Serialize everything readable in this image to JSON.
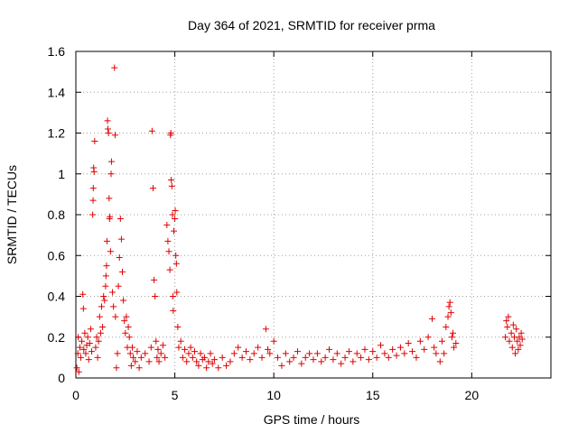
{
  "chart_data": {
    "type": "scatter",
    "title": "Day 364 of 2021, SRMTID for receiver prma",
    "xlabel": "GPS time / hours",
    "ylabel": "SRMTID / TECUs",
    "xlim": [
      0,
      24
    ],
    "ylim": [
      0,
      1.6
    ],
    "x_ticks": [
      0,
      5,
      10,
      15,
      20
    ],
    "x_tick_labels": [
      "0",
      "5",
      "10",
      "15",
      "20"
    ],
    "y_ticks": [
      0,
      0.2,
      0.4,
      0.6,
      0.8,
      1,
      1.2,
      1.4,
      1.6
    ],
    "y_tick_labels": [
      "0",
      "0.2",
      "0.4",
      "0.6",
      "0.8",
      "1",
      "1.2",
      "1.4",
      "1.6"
    ],
    "grid": true,
    "marker": "+",
    "color": "#e00000",
    "series": [
      {
        "name": "SRMTID",
        "points": [
          [
            0.05,
            0.05
          ],
          [
            0.1,
            0.12
          ],
          [
            0.12,
            0.2
          ],
          [
            0.15,
            0.03
          ],
          [
            0.2,
            0.15
          ],
          [
            0.25,
            0.1
          ],
          [
            0.3,
            0.18
          ],
          [
            0.35,
            0.41
          ],
          [
            0.38,
            0.34
          ],
          [
            0.4,
            0.14
          ],
          [
            0.45,
            0.22
          ],
          [
            0.5,
            0.12
          ],
          [
            0.55,
            0.16
          ],
          [
            0.6,
            0.2
          ],
          [
            0.65,
            0.09
          ],
          [
            0.7,
            0.17
          ],
          [
            0.75,
            0.24
          ],
          [
            0.8,
            0.13
          ],
          [
            0.85,
            0.8
          ],
          [
            0.87,
            0.87
          ],
          [
            0.88,
            0.93
          ],
          [
            0.9,
            1.03
          ],
          [
            0.92,
            1.01
          ],
          [
            0.95,
            1.16
          ],
          [
            1.0,
            0.15
          ],
          [
            1.05,
            0.2
          ],
          [
            1.1,
            0.1
          ],
          [
            1.15,
            0.18
          ],
          [
            1.2,
            0.3
          ],
          [
            1.25,
            0.22
          ],
          [
            1.3,
            0.35
          ],
          [
            1.35,
            0.25
          ],
          [
            1.4,
            0.4
          ],
          [
            1.45,
            0.38
          ],
          [
            1.5,
            0.45
          ],
          [
            1.52,
            0.5
          ],
          [
            1.55,
            0.55
          ],
          [
            1.57,
            0.67
          ],
          [
            1.6,
            1.26
          ],
          [
            1.62,
            1.22
          ],
          [
            1.65,
            1.2
          ],
          [
            1.68,
            0.88
          ],
          [
            1.7,
            0.78
          ],
          [
            1.72,
            0.79
          ],
          [
            1.75,
            0.62
          ],
          [
            1.78,
            1.0
          ],
          [
            1.8,
            1.06
          ],
          [
            1.85,
            0.42
          ],
          [
            1.9,
            0.35
          ],
          [
            1.95,
            1.52
          ],
          [
            1.98,
            1.19
          ],
          [
            2.0,
            0.3
          ],
          [
            2.05,
            0.05
          ],
          [
            2.1,
            0.12
          ],
          [
            2.15,
            0.45
          ],
          [
            2.2,
            0.59
          ],
          [
            2.25,
            0.78
          ],
          [
            2.3,
            0.68
          ],
          [
            2.35,
            0.52
          ],
          [
            2.4,
            0.38
          ],
          [
            2.45,
            0.28
          ],
          [
            2.5,
            0.22
          ],
          [
            2.55,
            0.3
          ],
          [
            2.6,
            0.15
          ],
          [
            2.65,
            0.25
          ],
          [
            2.7,
            0.2
          ],
          [
            2.75,
            0.12
          ],
          [
            2.8,
            0.06
          ],
          [
            2.85,
            0.15
          ],
          [
            2.9,
            0.1
          ],
          [
            3.0,
            0.08
          ],
          [
            3.1,
            0.13
          ],
          [
            3.2,
            0.05
          ],
          [
            3.3,
            0.1
          ],
          [
            3.5,
            0.12
          ],
          [
            3.7,
            0.08
          ],
          [
            3.8,
            0.15
          ],
          [
            3.85,
            1.21
          ],
          [
            3.9,
            0.93
          ],
          [
            3.95,
            0.48
          ],
          [
            4.0,
            0.4
          ],
          [
            4.05,
            0.18
          ],
          [
            4.1,
            0.1
          ],
          [
            4.15,
            0.14
          ],
          [
            4.2,
            0.08
          ],
          [
            4.3,
            0.12
          ],
          [
            4.4,
            0.16
          ],
          [
            4.5,
            0.1
          ],
          [
            4.6,
            0.75
          ],
          [
            4.65,
            0.67
          ],
          [
            4.7,
            0.62
          ],
          [
            4.75,
            0.53
          ],
          [
            4.78,
            1.19
          ],
          [
            4.8,
            1.2
          ],
          [
            4.82,
            0.97
          ],
          [
            4.85,
            0.94
          ],
          [
            4.88,
            0.8
          ],
          [
            4.9,
            0.4
          ],
          [
            4.92,
            0.33
          ],
          [
            4.95,
            0.72
          ],
          [
            5.0,
            0.78
          ],
          [
            5.02,
            0.82
          ],
          [
            5.05,
            0.6
          ],
          [
            5.08,
            0.56
          ],
          [
            5.1,
            0.42
          ],
          [
            5.15,
            0.25
          ],
          [
            5.2,
            0.15
          ],
          [
            5.3,
            0.18
          ],
          [
            5.4,
            0.1
          ],
          [
            5.5,
            0.14
          ],
          [
            5.6,
            0.08
          ],
          [
            5.7,
            0.12
          ],
          [
            5.8,
            0.15
          ],
          [
            5.9,
            0.1
          ],
          [
            6.0,
            0.13
          ],
          [
            6.1,
            0.08
          ],
          [
            6.2,
            0.06
          ],
          [
            6.3,
            0.12
          ],
          [
            6.4,
            0.09
          ],
          [
            6.5,
            0.1
          ],
          [
            6.6,
            0.05
          ],
          [
            6.7,
            0.08
          ],
          [
            6.8,
            0.12
          ],
          [
            6.9,
            0.07
          ],
          [
            7.0,
            0.09
          ],
          [
            7.2,
            0.05
          ],
          [
            7.4,
            0.1
          ],
          [
            7.6,
            0.06
          ],
          [
            7.8,
            0.08
          ],
          [
            8.0,
            0.12
          ],
          [
            8.2,
            0.15
          ],
          [
            8.4,
            0.1
          ],
          [
            8.6,
            0.13
          ],
          [
            8.8,
            0.09
          ],
          [
            9.0,
            0.12
          ],
          [
            9.2,
            0.15
          ],
          [
            9.4,
            0.1
          ],
          [
            9.6,
            0.24
          ],
          [
            9.7,
            0.14
          ],
          [
            9.8,
            0.12
          ],
          [
            10.0,
            0.18
          ],
          [
            10.2,
            0.1
          ],
          [
            10.4,
            0.06
          ],
          [
            10.6,
            0.12
          ],
          [
            10.8,
            0.08
          ],
          [
            11.0,
            0.1
          ],
          [
            11.2,
            0.13
          ],
          [
            11.4,
            0.07
          ],
          [
            11.6,
            0.1
          ],
          [
            11.8,
            0.12
          ],
          [
            12.0,
            0.09
          ],
          [
            12.2,
            0.12
          ],
          [
            12.4,
            0.08
          ],
          [
            12.6,
            0.1
          ],
          [
            12.8,
            0.14
          ],
          [
            13.0,
            0.09
          ],
          [
            13.2,
            0.12
          ],
          [
            13.4,
            0.07
          ],
          [
            13.6,
            0.1
          ],
          [
            13.8,
            0.13
          ],
          [
            14.0,
            0.08
          ],
          [
            14.2,
            0.12
          ],
          [
            14.4,
            0.1
          ],
          [
            14.6,
            0.14
          ],
          [
            14.8,
            0.09
          ],
          [
            15.0,
            0.13
          ],
          [
            15.2,
            0.1
          ],
          [
            15.4,
            0.16
          ],
          [
            15.6,
            0.12
          ],
          [
            15.8,
            0.1
          ],
          [
            16.0,
            0.14
          ],
          [
            16.2,
            0.11
          ],
          [
            16.4,
            0.15
          ],
          [
            16.6,
            0.12
          ],
          [
            16.8,
            0.17
          ],
          [
            17.0,
            0.13
          ],
          [
            17.2,
            0.1
          ],
          [
            17.4,
            0.18
          ],
          [
            17.6,
            0.14
          ],
          [
            17.8,
            0.2
          ],
          [
            18.0,
            0.29
          ],
          [
            18.1,
            0.15
          ],
          [
            18.2,
            0.12
          ],
          [
            18.4,
            0.08
          ],
          [
            18.5,
            0.18
          ],
          [
            18.6,
            0.12
          ],
          [
            18.7,
            0.25
          ],
          [
            18.8,
            0.3
          ],
          [
            18.85,
            0.35
          ],
          [
            18.9,
            0.37
          ],
          [
            18.95,
            0.32
          ],
          [
            19.0,
            0.2
          ],
          [
            19.05,
            0.22
          ],
          [
            19.1,
            0.15
          ],
          [
            19.2,
            0.17
          ],
          [
            21.7,
            0.2
          ],
          [
            21.75,
            0.28
          ],
          [
            21.8,
            0.25
          ],
          [
            21.85,
            0.3
          ],
          [
            21.9,
            0.18
          ],
          [
            22.0,
            0.22
          ],
          [
            22.05,
            0.15
          ],
          [
            22.1,
            0.26
          ],
          [
            22.15,
            0.2
          ],
          [
            22.2,
            0.12
          ],
          [
            22.25,
            0.24
          ],
          [
            22.3,
            0.18
          ],
          [
            22.35,
            0.14
          ],
          [
            22.4,
            0.2
          ],
          [
            22.45,
            0.16
          ],
          [
            22.5,
            0.22
          ],
          [
            22.55,
            0.19
          ]
        ]
      }
    ]
  }
}
